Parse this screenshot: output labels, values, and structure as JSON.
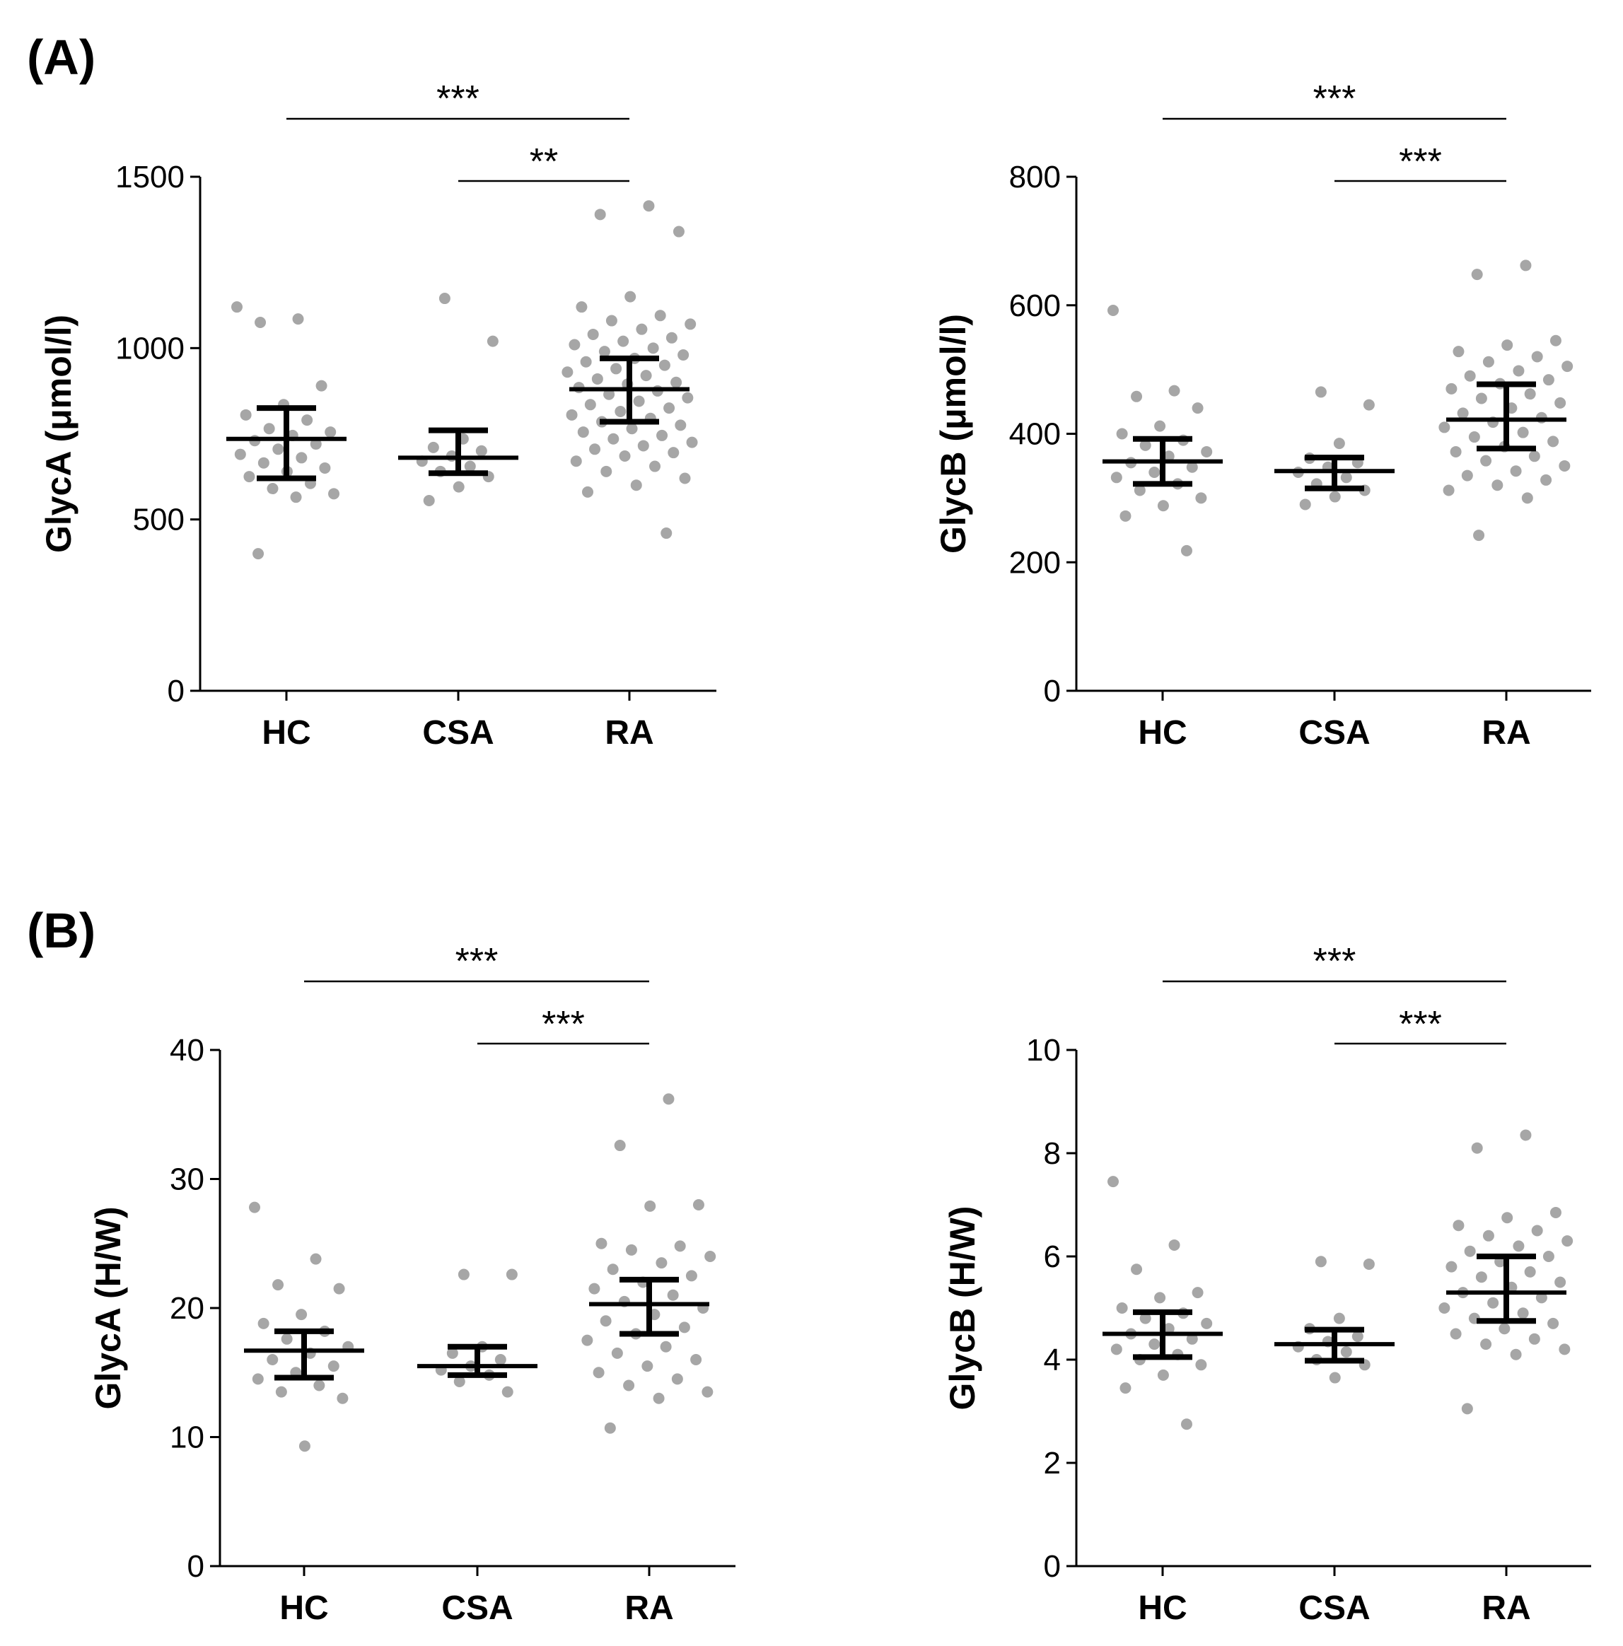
{
  "panel_labels": [
    "(A)",
    "(B)"
  ],
  "chart_data": [
    {
      "type": "scatter",
      "panel": "(A)",
      "ylabel": "GlycA (μmol/l)",
      "ylim": [
        0,
        1500
      ],
      "yticks": [
        0,
        500,
        1000,
        1500
      ],
      "categories": [
        "HC",
        "CSA",
        "RA"
      ],
      "summary": [
        {
          "group": "HC",
          "median": 735,
          "q1": 620,
          "q3": 825
        },
        {
          "group": "CSA",
          "median": 680,
          "q1": 635,
          "q3": 760
        },
        {
          "group": "RA",
          "median": 880,
          "q1": 785,
          "q3": 970
        }
      ],
      "points": {
        "HC": [
          1120,
          1085,
          1075,
          890,
          835,
          805,
          790,
          765,
          755,
          745,
          730,
          720,
          705,
          690,
          680,
          665,
          650,
          640,
          625,
          605,
          590,
          575,
          565,
          400
        ],
        "CSA": [
          1145,
          1020,
          735,
          710,
          700,
          685,
          670,
          655,
          640,
          625,
          595,
          555
        ],
        "RA": [
          1415,
          1390,
          1340,
          1150,
          1120,
          1095,
          1080,
          1070,
          1055,
          1040,
          1030,
          1020,
          1010,
          1000,
          990,
          980,
          970,
          960,
          950,
          940,
          930,
          920,
          910,
          900,
          895,
          885,
          875,
          865,
          855,
          845,
          835,
          825,
          815,
          805,
          795,
          785,
          775,
          765,
          755,
          745,
          735,
          725,
          715,
          705,
          695,
          685,
          670,
          655,
          640,
          620,
          600,
          580,
          460
        ]
      },
      "significance": [
        {
          "from": "HC",
          "to": "RA",
          "label": "***"
        },
        {
          "from": "CSA",
          "to": "RA",
          "label": "**"
        }
      ]
    },
    {
      "type": "scatter",
      "panel": "(A)",
      "ylabel": "GlycB (μmol/l)",
      "ylim": [
        0,
        800
      ],
      "yticks": [
        0,
        200,
        400,
        600,
        800
      ],
      "categories": [
        "HC",
        "CSA",
        "RA"
      ],
      "summary": [
        {
          "group": "HC",
          "median": 357,
          "q1": 322,
          "q3": 392
        },
        {
          "group": "CSA",
          "median": 342,
          "q1": 315,
          "q3": 363
        },
        {
          "group": "RA",
          "median": 422,
          "q1": 377,
          "q3": 477
        }
      ],
      "points": {
        "HC": [
          592,
          467,
          458,
          440,
          412,
          400,
          390,
          382,
          372,
          365,
          355,
          348,
          340,
          332,
          322,
          312,
          300,
          288,
          272,
          218
        ],
        "CSA": [
          465,
          445,
          385,
          362,
          355,
          348,
          340,
          332,
          322,
          312,
          302,
          290
        ],
        "RA": [
          662,
          648,
          545,
          538,
          528,
          520,
          512,
          505,
          498,
          490,
          484,
          478,
          470,
          462,
          455,
          448,
          440,
          432,
          425,
          418,
          410,
          402,
          395,
          388,
          380,
          372,
          365,
          358,
          350,
          342,
          335,
          328,
          320,
          312,
          300,
          242
        ]
      },
      "significance": [
        {
          "from": "HC",
          "to": "RA",
          "label": "***"
        },
        {
          "from": "CSA",
          "to": "RA",
          "label": "***"
        }
      ]
    },
    {
      "type": "scatter",
      "panel": "(B)",
      "ylabel": "GlycA (H/W)",
      "ylim": [
        0,
        40
      ],
      "yticks": [
        0,
        10,
        20,
        30,
        40
      ],
      "categories": [
        "HC",
        "CSA",
        "RA"
      ],
      "summary": [
        {
          "group": "HC",
          "median": 16.7,
          "q1": 14.6,
          "q3": 18.2
        },
        {
          "group": "CSA",
          "median": 15.5,
          "q1": 14.8,
          "q3": 17.0
        },
        {
          "group": "RA",
          "median": 20.3,
          "q1": 18.0,
          "q3": 22.2
        }
      ],
      "points": {
        "HC": [
          27.8,
          23.8,
          21.8,
          21.5,
          19.5,
          18.8,
          18.2,
          17.6,
          17.0,
          16.5,
          16.0,
          15.5,
          15.0,
          14.5,
          14.0,
          13.5,
          13.0,
          9.3
        ],
        "CSA": [
          22.6,
          22.6,
          17.0,
          16.5,
          16.0,
          15.5,
          15.2,
          14.8,
          14.3,
          13.5
        ],
        "RA": [
          36.2,
          32.6,
          28.0,
          27.9,
          25.0,
          24.8,
          24.5,
          24.0,
          23.5,
          23.0,
          22.5,
          22.0,
          21.5,
          21.0,
          20.5,
          20.0,
          19.5,
          19.0,
          18.5,
          18.0,
          17.5,
          17.0,
          16.5,
          16.0,
          15.5,
          15.0,
          14.5,
          14.0,
          13.5,
          13.0,
          10.7
        ]
      },
      "significance": [
        {
          "from": "HC",
          "to": "RA",
          "label": "***"
        },
        {
          "from": "CSA",
          "to": "RA",
          "label": "***"
        }
      ]
    },
    {
      "type": "scatter",
      "panel": "(B)",
      "ylabel": "GlycB (H/W)",
      "ylim": [
        0,
        10
      ],
      "yticks": [
        0,
        2,
        4,
        6,
        8,
        10
      ],
      "categories": [
        "HC",
        "CSA",
        "RA"
      ],
      "summary": [
        {
          "group": "HC",
          "median": 4.5,
          "q1": 4.05,
          "q3": 4.92
        },
        {
          "group": "CSA",
          "median": 4.3,
          "q1": 3.98,
          "q3": 4.58
        },
        {
          "group": "RA",
          "median": 5.3,
          "q1": 4.75,
          "q3": 6.0
        }
      ],
      "points": {
        "HC": [
          7.45,
          6.22,
          5.75,
          5.3,
          5.2,
          5.0,
          4.9,
          4.8,
          4.7,
          4.6,
          4.5,
          4.4,
          4.3,
          4.2,
          4.1,
          4.0,
          3.9,
          3.7,
          3.45,
          2.75
        ],
        "CSA": [
          5.9,
          5.85,
          4.8,
          4.6,
          4.45,
          4.35,
          4.25,
          4.15,
          4.0,
          3.9,
          3.65
        ],
        "RA": [
          8.35,
          8.1,
          6.85,
          6.75,
          6.6,
          6.5,
          6.4,
          6.3,
          6.2,
          6.1,
          6.0,
          5.9,
          5.8,
          5.7,
          5.6,
          5.5,
          5.4,
          5.3,
          5.2,
          5.1,
          5.0,
          4.9,
          4.8,
          4.7,
          4.6,
          4.5,
          4.4,
          4.3,
          4.2,
          4.1,
          3.05
        ]
      },
      "significance": [
        {
          "from": "HC",
          "to": "RA",
          "label": "***"
        },
        {
          "from": "CSA",
          "to": "RA",
          "label": "***"
        }
      ]
    }
  ]
}
